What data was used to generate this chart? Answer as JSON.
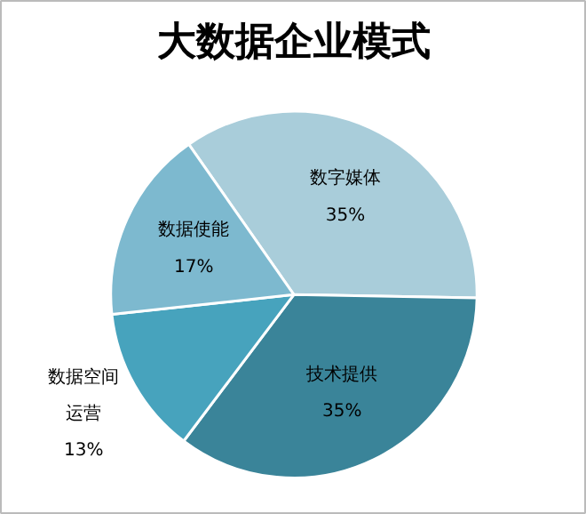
{
  "chart_data": {
    "type": "pie",
    "title": "大数据企业模式",
    "categories": [
      "数字媒体",
      "技术提供",
      "数据空间运营",
      "数据使能"
    ],
    "values": [
      35,
      35,
      13,
      17
    ],
    "value_labels": [
      "35%",
      "35%",
      "13%",
      "17%"
    ],
    "colors": [
      "#a9cdda",
      "#3a8499",
      "#47a3bd",
      "#7db9cf"
    ]
  }
}
